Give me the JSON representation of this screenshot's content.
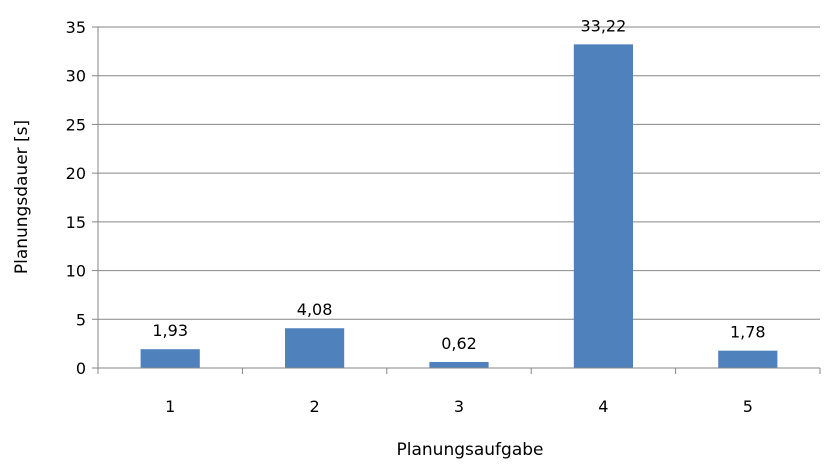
{
  "chart_data": {
    "type": "bar",
    "title": "",
    "xlabel": "Planungsaufgabe",
    "ylabel": "Planungsdauer [s]",
    "categories": [
      "1",
      "2",
      "3",
      "4",
      "5"
    ],
    "series": [
      {
        "values": [
          1.93,
          4.08,
          0.62,
          33.22,
          1.78
        ]
      }
    ],
    "data_labels": [
      "1,93",
      "4,08",
      "0,62",
      "33,22",
      "1,78"
    ],
    "yticks": [
      0,
      5,
      10,
      15,
      20,
      25,
      30,
      35
    ],
    "ylim": [
      0,
      35
    ],
    "grid": "horizontal",
    "legend": "none",
    "colors": {
      "bar": "#4F81BD",
      "grid": "#868686",
      "axis": "#868686"
    }
  }
}
